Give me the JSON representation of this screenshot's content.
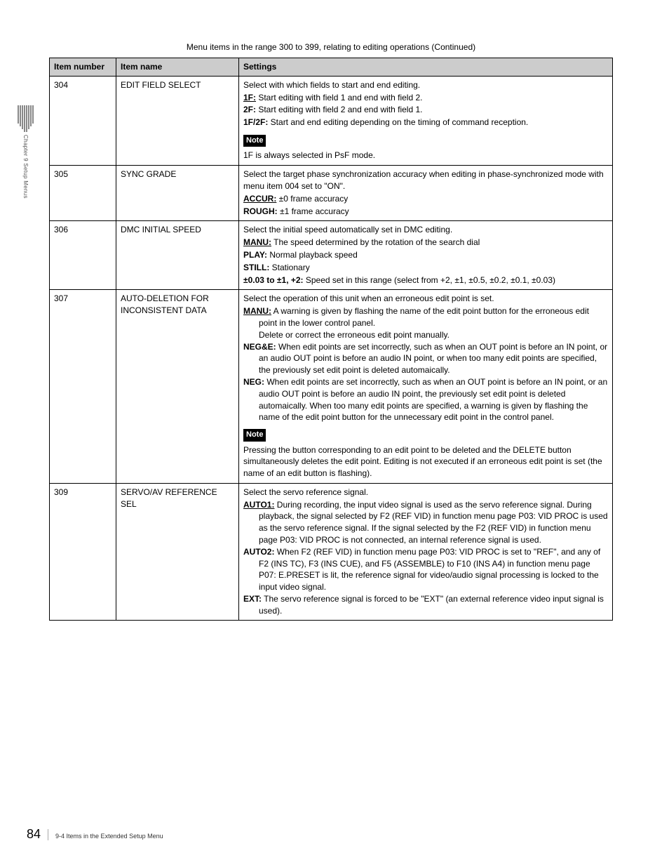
{
  "sidetab_label": "Chapter 9  Setup Menus",
  "caption": "Menu items in the range 300 to 399, relating to editing operations (Continued)",
  "headers": {
    "c1": "Item number",
    "c2": "Item name",
    "c3": "Settings"
  },
  "rows": {
    "r1": {
      "num": "304",
      "name": "EDIT FIELD SELECT",
      "intro": "Select with which fields to start and end editing.",
      "opt1_k": "1F:",
      "opt1_v": " Start editing with field 1 and end with field 2.",
      "opt2_k": "2F:",
      "opt2_v": " Start editing with field 2 and end with field 1.",
      "opt3_k": "1F/2F:",
      "opt3_v": " Start and end editing depending on the timing of command reception.",
      "note_label": "Note",
      "note_text": "1F is always selected in PsF mode."
    },
    "r2": {
      "num": "305",
      "name": "SYNC GRADE",
      "intro": "Select the target phase synchronization accuracy when editing in phase-synchronized mode with menu item 004 set to \"ON\".",
      "opt1_k": "ACCUR:",
      "opt1_v": " ±0 frame accuracy",
      "opt2_k": "ROUGH:",
      "opt2_v": " ±1 frame accuracy"
    },
    "r3": {
      "num": "306",
      "name": "DMC INITIAL SPEED",
      "intro": "Select the initial speed automatically set in DMC editing.",
      "opt1_k": "MANU:",
      "opt1_v": " The speed determined by the rotation of the search dial",
      "opt2_k": "PLAY:",
      "opt2_v": " Normal playback speed",
      "opt3_k": "STILL:",
      "opt3_v": " Stationary",
      "opt4_k": "±0.03 to ±1, +2:",
      "opt4_v": " Speed set in this range (select from +2, ±1, ±0.5, ±0.2, ±0.1, ±0.03)"
    },
    "r4": {
      "num": "307",
      "name_l1": "AUTO-DELETION FOR",
      "name_l2": "INCONSISTENT DATA",
      "intro": "Select the operation of this unit when an erroneous edit point is set.",
      "opt1_k": "MANU:",
      "opt1_v1": " A warning is given by flashing the name of the edit point button for the erroneous edit point in the lower control panel.",
      "opt1_v2": "Delete or correct the erroneous edit point manually.",
      "opt2_k": "NEG&E:",
      "opt2_v": " When edit points are set incorrectly, such as when an OUT point is before an IN point, or an audio OUT point is before an audio IN point, or when too many edit points are specified, the previously set edit point is deleted automaically.",
      "opt3_k": "NEG:",
      "opt3_v": " When edit points are set incorrectly, such as when an OUT point is before an IN point, or an audio OUT point is before an audio IN point, the previously set edit point is deleted automaically. When too many edit points are specified, a warning is given by flashing the name of the edit point button for the unnecessary edit point in the control panel.",
      "note_label": "Note",
      "note_text": "Pressing the button corresponding to an edit point to be deleted and the DELETE button simultaneously deletes the edit point. Editing is not executed if an erroneous edit point is set (the name of an edit button is flashing)."
    },
    "r5": {
      "num": "309",
      "name_l1": "SERVO/AV REFERENCE",
      "name_l2": "SEL",
      "intro": "Select the servo reference signal.",
      "opt1_k": "AUTO1:",
      "opt1_v": " During recording, the input video signal is used as the servo reference signal. During playback, the signal selected by F2 (REF VID) in function menu page P03: VID PROC is used as the servo reference signal. If the signal selected by the F2 (REF VID) in function menu page P03: VID PROC is not connected, an internal reference signal is used.",
      "opt2_k": "AUTO2:",
      "opt2_v": " When F2 (REF VID) in function menu page P03: VID PROC is set to \"REF\", and any of  F2 (INS TC), F3 (INS CUE), and F5 (ASSEMBLE) to F10 (INS A4) in function menu page P07: E.PRESET is lit, the reference signal for video/audio signal processing is locked to the input video signal.",
      "opt3_k": "EXT:",
      "opt3_v": " The servo reference signal is forced to be \"EXT\" (an external reference video input signal is used)."
    }
  },
  "footer": {
    "page": "84",
    "text": "9-4  Items in the Extended Setup Menu"
  }
}
